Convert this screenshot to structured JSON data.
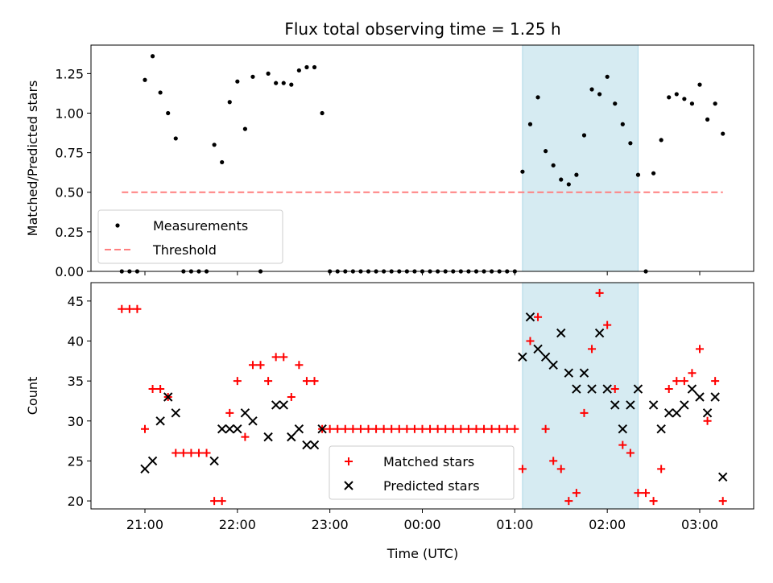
{
  "chart_data": [
    {
      "type": "scatter",
      "title": "Flux total observing time = 1.25 h",
      "xlabel": "",
      "ylabel": "Matched/Predicted stars",
      "ylim": [
        0,
        1.43
      ],
      "yticks": [
        "0.00",
        "0.25",
        "0.50",
        "0.75",
        "1.00",
        "1.25"
      ],
      "ytick_values": [
        0,
        0.25,
        0.5,
        0.75,
        1.0,
        1.25
      ],
      "legend_placement": "lower-left",
      "highlight_span": {
        "start": "01:05",
        "end": "02:20",
        "color": "#add8e6"
      },
      "series": [
        {
          "name": "Measurements",
          "color": "#000000",
          "marker": "dot",
          "x": [
            "20:45",
            "20:50",
            "20:55",
            "21:00",
            "21:05",
            "21:10",
            "21:15",
            "21:20",
            "21:25",
            "21:30",
            "21:35",
            "21:40",
            "21:45",
            "21:50",
            "21:55",
            "22:00",
            "22:05",
            "22:10",
            "22:15",
            "22:20",
            "22:25",
            "22:30",
            "22:35",
            "22:40",
            "22:45",
            "22:50",
            "22:55",
            "23:00",
            "23:05",
            "23:10",
            "23:15",
            "23:20",
            "23:25",
            "23:30",
            "23:35",
            "23:40",
            "23:45",
            "23:50",
            "23:55",
            "00:00",
            "00:05",
            "00:10",
            "00:15",
            "00:20",
            "00:25",
            "00:30",
            "00:35",
            "00:40",
            "00:45",
            "00:50",
            "00:55",
            "01:00",
            "01:05",
            "01:10",
            "01:15",
            "01:20",
            "01:25",
            "01:30",
            "01:35",
            "01:40",
            "01:45",
            "01:50",
            "01:55",
            "02:00",
            "02:05",
            "02:10",
            "02:15",
            "02:20",
            "02:25",
            "02:30",
            "02:35",
            "02:40",
            "02:45",
            "02:50",
            "02:55",
            "03:00",
            "03:05",
            "03:10",
            "03:15"
          ],
          "values": [
            0,
            0,
            0,
            1.21,
            1.36,
            1.13,
            1.0,
            0.84,
            0,
            0,
            0,
            0,
            0.8,
            0.69,
            1.07,
            1.2,
            0.9,
            1.23,
            0,
            1.25,
            1.19,
            1.19,
            1.18,
            1.27,
            1.29,
            1.29,
            1.0,
            0,
            0,
            0,
            0,
            0,
            0,
            0,
            0,
            0,
            0,
            0,
            0,
            0,
            0,
            0,
            0,
            0,
            0,
            0,
            0,
            0,
            0,
            0,
            0,
            0,
            0.63,
            0.93,
            1.1,
            0.76,
            0.67,
            0.58,
            0.55,
            0.61,
            0.86,
            1.15,
            1.12,
            1.23,
            1.06,
            0.93,
            0.81,
            0.61,
            0,
            0.62,
            0.83,
            1.1,
            1.12,
            1.09,
            1.06,
            1.18,
            0.96,
            1.06,
            0.87
          ]
        },
        {
          "name": "Threshold",
          "color": "#ff7f7f",
          "line": "dashed",
          "x": [
            "20:45",
            "03:15"
          ],
          "values": [
            0.5,
            0.5
          ]
        }
      ]
    },
    {
      "type": "scatter",
      "title": "",
      "xlabel": "Time (UTC)",
      "ylabel": "Count",
      "ylim": [
        19,
        47.3
      ],
      "yticks": [
        "20",
        "25",
        "30",
        "35",
        "40",
        "45"
      ],
      "ytick_values": [
        20,
        25,
        30,
        35,
        40,
        45
      ],
      "xticks": [
        "21:00",
        "22:00",
        "23:00",
        "00:00",
        "01:00",
        "02:00",
        "03:00"
      ],
      "xlim": [
        "20:25",
        "03:35"
      ],
      "legend_placement": "lower-center",
      "highlight_span": {
        "start": "01:05",
        "end": "02:20",
        "color": "#add8e6"
      },
      "series": [
        {
          "name": "Matched stars",
          "color": "#ff0000",
          "marker": "plus",
          "x": [
            "20:45",
            "20:50",
            "20:55",
            "21:00",
            "21:05",
            "21:10",
            "21:15",
            "21:20",
            "21:25",
            "21:30",
            "21:35",
            "21:40",
            "21:45",
            "21:50",
            "21:55",
            "22:00",
            "22:05",
            "22:10",
            "22:15",
            "22:20",
            "22:25",
            "22:30",
            "22:35",
            "22:40",
            "22:45",
            "22:50",
            "22:55",
            "23:00",
            "23:05",
            "23:10",
            "23:15",
            "23:20",
            "23:25",
            "23:30",
            "23:35",
            "23:40",
            "23:45",
            "23:50",
            "23:55",
            "00:00",
            "00:05",
            "00:10",
            "00:15",
            "00:20",
            "00:25",
            "00:30",
            "00:35",
            "00:40",
            "00:45",
            "00:50",
            "00:55",
            "01:00",
            "01:05",
            "01:10",
            "01:15",
            "01:20",
            "01:25",
            "01:30",
            "01:35",
            "01:40",
            "01:45",
            "01:50",
            "01:55",
            "02:00",
            "02:05",
            "02:10",
            "02:15",
            "02:20",
            "02:25",
            "02:30",
            "02:35",
            "02:40",
            "02:45",
            "02:50",
            "02:55",
            "03:00",
            "03:05",
            "03:10",
            "03:15"
          ],
          "values": [
            44,
            44,
            44,
            29,
            34,
            34,
            33,
            26,
            26,
            26,
            26,
            26,
            20,
            20,
            31,
            35,
            28,
            37,
            37,
            35,
            38,
            38,
            33,
            37,
            35,
            35,
            29,
            29,
            29,
            29,
            29,
            29,
            29,
            29,
            29,
            29,
            29,
            29,
            29,
            29,
            29,
            29,
            29,
            29,
            29,
            29,
            29,
            29,
            29,
            29,
            29,
            29,
            24,
            40,
            43,
            29,
            25,
            24,
            20,
            21,
            31,
            39,
            46,
            42,
            34,
            27,
            26,
            21,
            21,
            20,
            24,
            34,
            35,
            35,
            36,
            39,
            30,
            35,
            20
          ]
        },
        {
          "name": "Predicted stars",
          "color": "#000000",
          "marker": "x",
          "x": [
            "21:00",
            "21:05",
            "21:10",
            "21:15",
            "21:20",
            "21:45",
            "21:50",
            "21:55",
            "22:00",
            "22:05",
            "22:10",
            "22:20",
            "22:25",
            "22:30",
            "22:35",
            "22:40",
            "22:45",
            "22:50",
            "22:55",
            "01:05",
            "01:10",
            "01:15",
            "01:20",
            "01:25",
            "01:30",
            "01:35",
            "01:40",
            "01:45",
            "01:50",
            "01:55",
            "02:00",
            "02:05",
            "02:10",
            "02:15",
            "02:20",
            "02:30",
            "02:35",
            "02:40",
            "02:45",
            "02:50",
            "02:55",
            "03:00",
            "03:05",
            "03:10",
            "03:15"
          ],
          "values": [
            24,
            25,
            30,
            33,
            31,
            25,
            29,
            29,
            29,
            31,
            30,
            28,
            32,
            32,
            28,
            29,
            27,
            27,
            29,
            38,
            43,
            39,
            38,
            37,
            41,
            36,
            34,
            36,
            34,
            41,
            34,
            32,
            29,
            32,
            34,
            32,
            29,
            31,
            31,
            32,
            34,
            33,
            31,
            33,
            23
          ]
        }
      ]
    }
  ]
}
